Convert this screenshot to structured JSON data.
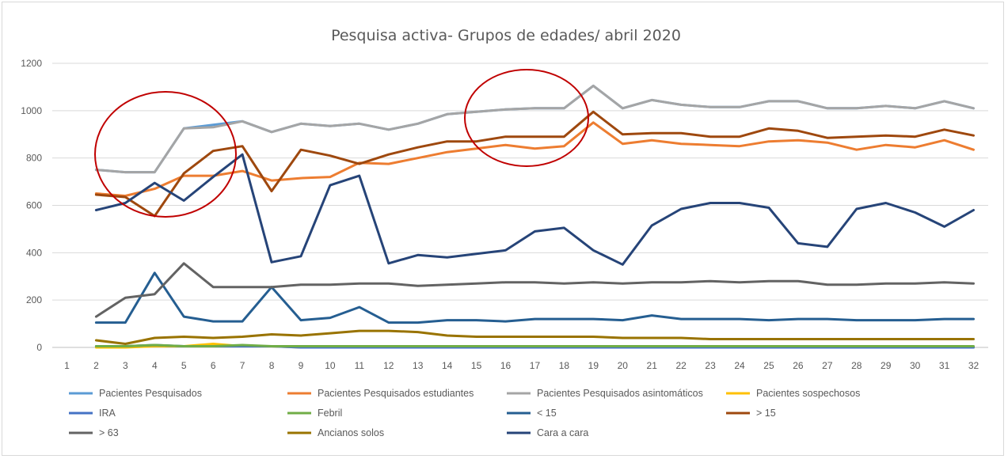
{
  "chart_data": {
    "type": "line",
    "title": "Pesquisa activa- Grupos de edades/ abril 2020",
    "xlabel": "",
    "ylabel": "",
    "x": [
      1,
      2,
      3,
      4,
      5,
      6,
      7,
      8,
      9,
      10,
      11,
      12,
      13,
      14,
      15,
      16,
      17,
      18,
      19,
      20,
      21,
      22,
      23,
      24,
      25,
      26,
      27,
      28,
      29,
      30,
      31,
      32
    ],
    "ylim": [
      0,
      1200
    ],
    "yticks": [
      0,
      200,
      400,
      600,
      800,
      1000,
      1200
    ],
    "grid": "horizontal",
    "legend_position": "bottom",
    "series": [
      {
        "name": "Pacientes Pesquisados",
        "color": "#5b9bd5",
        "values": [
          null,
          750,
          740,
          740,
          925,
          940,
          955,
          910,
          945,
          935,
          945,
          920,
          945,
          985,
          995,
          1005,
          1010,
          1010,
          1105,
          1010,
          1045,
          1025,
          1015,
          1015,
          1040,
          1040,
          1010,
          1010,
          1020,
          1010,
          1040,
          1010
        ]
      },
      {
        "name": "Pacientes Pesquisados estudiantes",
        "color": "#ed7d31",
        "values": [
          null,
          650,
          640,
          670,
          725,
          725,
          745,
          705,
          715,
          720,
          780,
          775,
          800,
          825,
          840,
          855,
          840,
          850,
          950,
          860,
          875,
          860,
          855,
          850,
          870,
          875,
          865,
          835,
          855,
          845,
          875,
          835
        ]
      },
      {
        "name": "Pacientes Pesquisados asintomáticos",
        "color": "#a5a5a5",
        "values": [
          null,
          750,
          740,
          740,
          925,
          930,
          955,
          910,
          945,
          935,
          945,
          920,
          945,
          985,
          995,
          1005,
          1010,
          1010,
          1105,
          1010,
          1045,
          1025,
          1015,
          1015,
          1040,
          1040,
          1010,
          1010,
          1020,
          1010,
          1040,
          1010
        ]
      },
      {
        "name": "Pacientes sospechosos",
        "color": "#ffc000",
        "values": [
          null,
          0,
          0,
          5,
          5,
          15,
          5,
          5,
          0,
          0,
          0,
          0,
          0,
          0,
          0,
          0,
          0,
          0,
          0,
          0,
          0,
          0,
          0,
          0,
          0,
          0,
          0,
          0,
          0,
          0,
          0,
          0
        ]
      },
      {
        "name": "IRA",
        "color": "#4472c4",
        "values": [
          null,
          5,
          5,
          10,
          5,
          5,
          5,
          5,
          0,
          0,
          0,
          0,
          0,
          0,
          0,
          0,
          0,
          0,
          0,
          0,
          0,
          0,
          0,
          0,
          0,
          0,
          0,
          0,
          0,
          0,
          0,
          0
        ]
      },
      {
        "name": "Febril",
        "color": "#70ad47",
        "values": [
          null,
          5,
          5,
          10,
          5,
          5,
          10,
          5,
          5,
          5,
          5,
          5,
          5,
          5,
          5,
          5,
          5,
          5,
          5,
          5,
          5,
          5,
          5,
          5,
          5,
          5,
          5,
          5,
          5,
          5,
          5,
          5
        ]
      },
      {
        "name": "< 15",
        "color": "#255e91",
        "values": [
          null,
          105,
          105,
          315,
          130,
          110,
          110,
          255,
          115,
          125,
          170,
          105,
          105,
          115,
          115,
          110,
          120,
          120,
          120,
          115,
          135,
          120,
          120,
          120,
          115,
          120,
          120,
          115,
          115,
          115,
          120,
          120
        ]
      },
      {
        "name": "> 15",
        "color": "#9e480e",
        "values": [
          null,
          645,
          635,
          555,
          735,
          830,
          850,
          660,
          835,
          810,
          775,
          815,
          845,
          870,
          870,
          890,
          890,
          890,
          995,
          900,
          905,
          905,
          890,
          890,
          925,
          915,
          885,
          890,
          895,
          890,
          920,
          895
        ]
      },
      {
        "name": "> 63",
        "color": "#636363",
        "values": [
          null,
          130,
          210,
          225,
          355,
          255,
          255,
          255,
          265,
          265,
          270,
          270,
          260,
          265,
          270,
          275,
          275,
          270,
          275,
          270,
          275,
          275,
          280,
          275,
          280,
          280,
          265,
          265,
          270,
          270,
          275,
          270
        ]
      },
      {
        "name": "Ancianos solos",
        "color": "#997300",
        "values": [
          null,
          30,
          15,
          40,
          45,
          40,
          45,
          55,
          50,
          60,
          70,
          70,
          65,
          50,
          45,
          45,
          45,
          45,
          45,
          40,
          40,
          40,
          35,
          35,
          35,
          35,
          35,
          35,
          35,
          35,
          35,
          35
        ]
      },
      {
        "name": "Cara a cara",
        "color": "#264478",
        "values": [
          null,
          580,
          610,
          695,
          620,
          720,
          815,
          360,
          385,
          685,
          725,
          355,
          390,
          380,
          395,
          410,
          490,
          505,
          410,
          350,
          515,
          585,
          610,
          610,
          590,
          440,
          425,
          585,
          610,
          570,
          510,
          580
        ]
      }
    ]
  }
}
